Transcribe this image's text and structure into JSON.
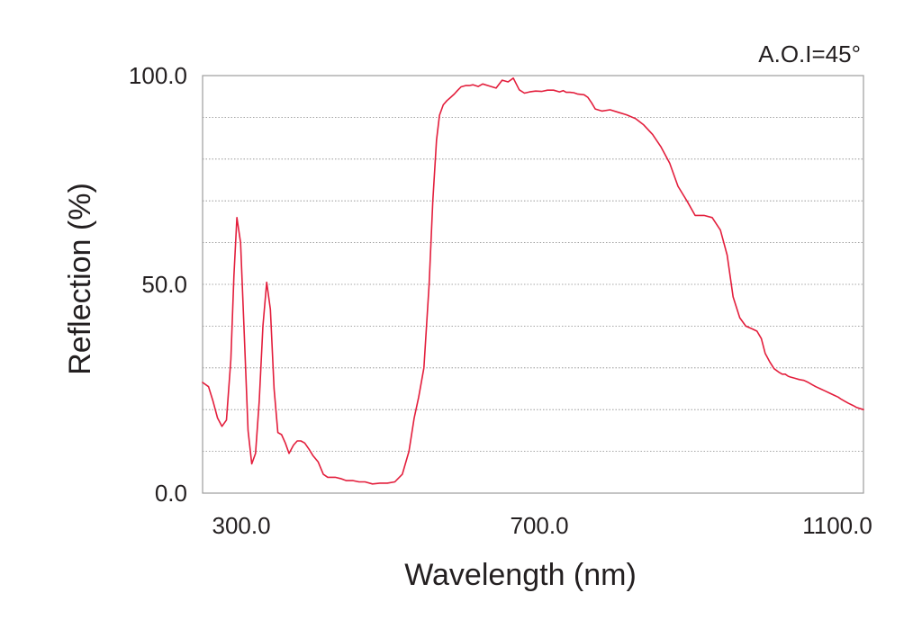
{
  "chart_data": {
    "type": "line",
    "title": "",
    "annotation": "A.O.I=45°",
    "xlabel": "Wavelength (nm)",
    "ylabel": "Reflection (%)",
    "xlim": [
      248,
      1135
    ],
    "ylim": [
      0,
      100
    ],
    "x_ticks": [
      {
        "value": 300,
        "label": "300.0"
      },
      {
        "value": 700,
        "label": "700.0"
      },
      {
        "value": 1100,
        "label": "1100.0"
      }
    ],
    "y_ticks": [
      {
        "value": 0,
        "label": "0.0"
      },
      {
        "value": 50,
        "label": "50.0"
      },
      {
        "value": 100,
        "label": "100.0"
      }
    ],
    "grid": true,
    "gridlines_y": [
      10,
      20,
      30,
      40,
      50,
      60,
      70,
      80,
      90
    ],
    "line_color": "#e31e3c",
    "series": [
      {
        "name": "",
        "x": [
          248,
          256,
          262,
          268,
          274,
          280,
          286,
          290,
          294,
          299,
          304,
          309,
          314,
          319,
          324,
          329,
          334,
          339,
          344,
          349,
          354,
          359,
          364,
          370,
          375,
          380,
          385,
          391,
          396,
          403,
          410,
          416,
          421,
          426,
          433,
          441,
          450,
          458,
          466,
          476,
          486,
          496,
          506,
          516,
          525,
          532,
          538,
          545,
          552,
          557,
          562,
          566,
          571,
          576,
          581,
          586,
          590,
          595,
          601,
          606,
          611,
          618,
          624,
          633,
          642,
          650,
          658,
          665,
          673,
          680,
          687,
          695,
          703,
          711,
          719,
          727,
          732,
          736,
          741,
          746,
          751,
          756,
          760,
          765,
          770,
          775,
          784,
          795,
          806,
          817,
          829,
          840,
          852,
          863,
          875,
          886,
          898,
          909,
          921,
          932,
          943,
          952,
          960,
          969,
          977,
          986,
          992,
          998,
          1003,
          1009,
          1015,
          1021,
          1026,
          1030,
          1034,
          1037,
          1043,
          1049,
          1055,
          1060,
          1066,
          1071,
          1077,
          1083,
          1089,
          1095,
          1101,
          1105,
          1110,
          1115,
          1121,
          1126,
          1135
        ],
        "y": [
          26.5,
          25.5,
          22.0,
          18.0,
          16.0,
          17.5,
          32.0,
          52.0,
          66.0,
          60.0,
          38.0,
          15.0,
          7.0,
          9.5,
          22.0,
          40.0,
          50.5,
          44.0,
          25.0,
          14.5,
          14.0,
          12.0,
          9.5,
          11.5,
          12.5,
          12.5,
          12.0,
          10.5,
          9.0,
          7.5,
          4.5,
          3.8,
          3.8,
          3.8,
          3.5,
          3.0,
          3.0,
          2.7,
          2.7,
          2.2,
          2.4,
          2.4,
          2.7,
          4.5,
          10.0,
          18.0,
          23.0,
          30.0,
          50.0,
          70.0,
          84.5,
          90.5,
          93.0,
          94.0,
          94.8,
          95.6,
          96.4,
          97.3,
          97.6,
          97.6,
          97.8,
          97.4,
          98.0,
          97.5,
          97.0,
          98.9,
          98.5,
          99.4,
          96.6,
          95.8,
          96.1,
          96.3,
          96.2,
          96.5,
          96.5,
          96.1,
          96.4,
          96.0,
          96.0,
          95.9,
          95.6,
          95.5,
          95.4,
          94.8,
          93.5,
          92.0,
          91.5,
          91.8,
          91.2,
          90.6,
          89.7,
          88.2,
          85.9,
          83.0,
          79.0,
          73.5,
          70.0,
          66.5,
          66.5,
          66.0,
          63.0,
          57.0,
          47.0,
          42.0,
          40.0,
          39.3,
          38.8,
          37.0,
          33.5,
          31.5,
          29.8,
          29.0,
          28.5,
          28.5,
          28.0,
          27.8,
          27.5,
          27.2,
          27.0,
          26.6,
          26.0,
          25.5,
          25.0,
          24.5,
          24.0,
          23.5,
          23.0,
          22.5,
          22.0,
          21.5,
          21.0,
          20.5,
          20.0
        ]
      }
    ]
  }
}
